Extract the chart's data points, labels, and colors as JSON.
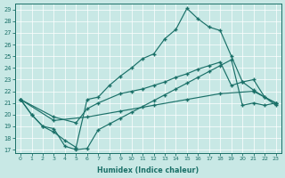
{
  "xlabel": "Humidex (Indice chaleur)",
  "xlim_min": -0.5,
  "xlim_max": 23.5,
  "ylim_min": 16.7,
  "ylim_max": 29.5,
  "xticks": [
    0,
    1,
    2,
    3,
    4,
    5,
    6,
    7,
    8,
    9,
    10,
    11,
    12,
    13,
    14,
    15,
    16,
    17,
    18,
    19,
    20,
    21,
    22,
    23
  ],
  "yticks": [
    17,
    18,
    19,
    20,
    21,
    22,
    23,
    24,
    25,
    26,
    27,
    28,
    29
  ],
  "bg_color": "#c8e8e5",
  "grid_color": "#b0d8d5",
  "line_color": "#1a7068",
  "line1_x": [
    0,
    1,
    2,
    3,
    4,
    5,
    6,
    7,
    8,
    9,
    10,
    11,
    12,
    13,
    14,
    15,
    16,
    17,
    18,
    19,
    20,
    21,
    22,
    23
  ],
  "line1_y": [
    21.3,
    20.0,
    19.0,
    18.8,
    17.3,
    17.0,
    17.1,
    18.7,
    19.2,
    19.7,
    20.2,
    20.7,
    21.2,
    21.7,
    22.2,
    22.7,
    23.2,
    23.7,
    24.2,
    24.7,
    20.8,
    21.0,
    20.8,
    21.0
  ],
  "line2_x": [
    0,
    1,
    2,
    3,
    4,
    5,
    6,
    7,
    8,
    9,
    10,
    11,
    12,
    13,
    14,
    15,
    16,
    17,
    18,
    19,
    20,
    21,
    22,
    23
  ],
  "line2_y": [
    21.3,
    20.0,
    19.0,
    18.5,
    17.8,
    17.2,
    21.3,
    21.5,
    22.5,
    23.3,
    24.0,
    24.8,
    25.2,
    26.5,
    27.3,
    29.1,
    28.2,
    27.5,
    27.2,
    25.0,
    22.8,
    22.1,
    21.5,
    21.0
  ],
  "line3_x": [
    0,
    3,
    5,
    6,
    7,
    9,
    10,
    11,
    12,
    13,
    14,
    15,
    16,
    17,
    18,
    19,
    20,
    21,
    22,
    23
  ],
  "line3_y": [
    21.3,
    19.8,
    19.3,
    20.5,
    21.0,
    21.8,
    22.0,
    22.2,
    22.5,
    22.8,
    23.2,
    23.5,
    23.9,
    24.2,
    24.5,
    22.5,
    22.8,
    23.0,
    21.5,
    20.8
  ],
  "line4_x": [
    0,
    3,
    6,
    9,
    12,
    15,
    18,
    21,
    23
  ],
  "line4_y": [
    21.3,
    19.5,
    19.8,
    20.3,
    20.8,
    21.3,
    21.8,
    22.0,
    21.0
  ]
}
